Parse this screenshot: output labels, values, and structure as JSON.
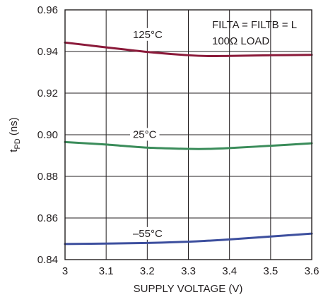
{
  "chart_data": {
    "type": "line",
    "xlabel": "SUPPLY VOLTAGE (V)",
    "ylabel_main": "t",
    "ylabel_sub": "PD",
    "ylabel_unit": " (ns)",
    "xlim": [
      3,
      3.6
    ],
    "ylim": [
      0.84,
      0.96
    ],
    "xticks": [
      3,
      3.1,
      3.2,
      3.3,
      3.4,
      3.5,
      3.6
    ],
    "xtick_labels": [
      "3",
      "3.1",
      "3.2",
      "3.3",
      "3.4",
      "3.5",
      "3.6"
    ],
    "yticks": [
      0.84,
      0.86,
      0.88,
      0.9,
      0.92,
      0.94,
      0.96
    ],
    "ytick_labels": [
      "0.84",
      "0.86",
      "0.88",
      "0.90",
      "0.92",
      "0.94",
      "0.96"
    ],
    "grid": true,
    "annotations": [
      "FILTA = FILTB = L",
      "100Ω LOAD"
    ],
    "x": [
      3.0,
      3.1,
      3.2,
      3.3,
      3.35,
      3.4,
      3.5,
      3.6
    ],
    "series": [
      {
        "name": "125°C",
        "color": "#8b1a3a",
        "values": [
          0.9443,
          0.942,
          0.9398,
          0.9382,
          0.9378,
          0.9379,
          0.9382,
          0.9384
        ],
        "label_at": [
          3.165,
          0.9465
        ]
      },
      {
        "name": "25°C",
        "color": "#3a8c5a",
        "values": [
          0.8965,
          0.8953,
          0.8938,
          0.8932,
          0.8932,
          0.8936,
          0.8947,
          0.8959
        ],
        "label_at": [
          3.165,
          0.8985
        ]
      },
      {
        "name": "–55°C",
        "color": "#3d4f9e",
        "values": [
          0.8475,
          0.8477,
          0.848,
          0.8486,
          0.8491,
          0.8497,
          0.8511,
          0.8525
        ],
        "label_at": [
          3.165,
          0.8509
        ]
      }
    ]
  }
}
